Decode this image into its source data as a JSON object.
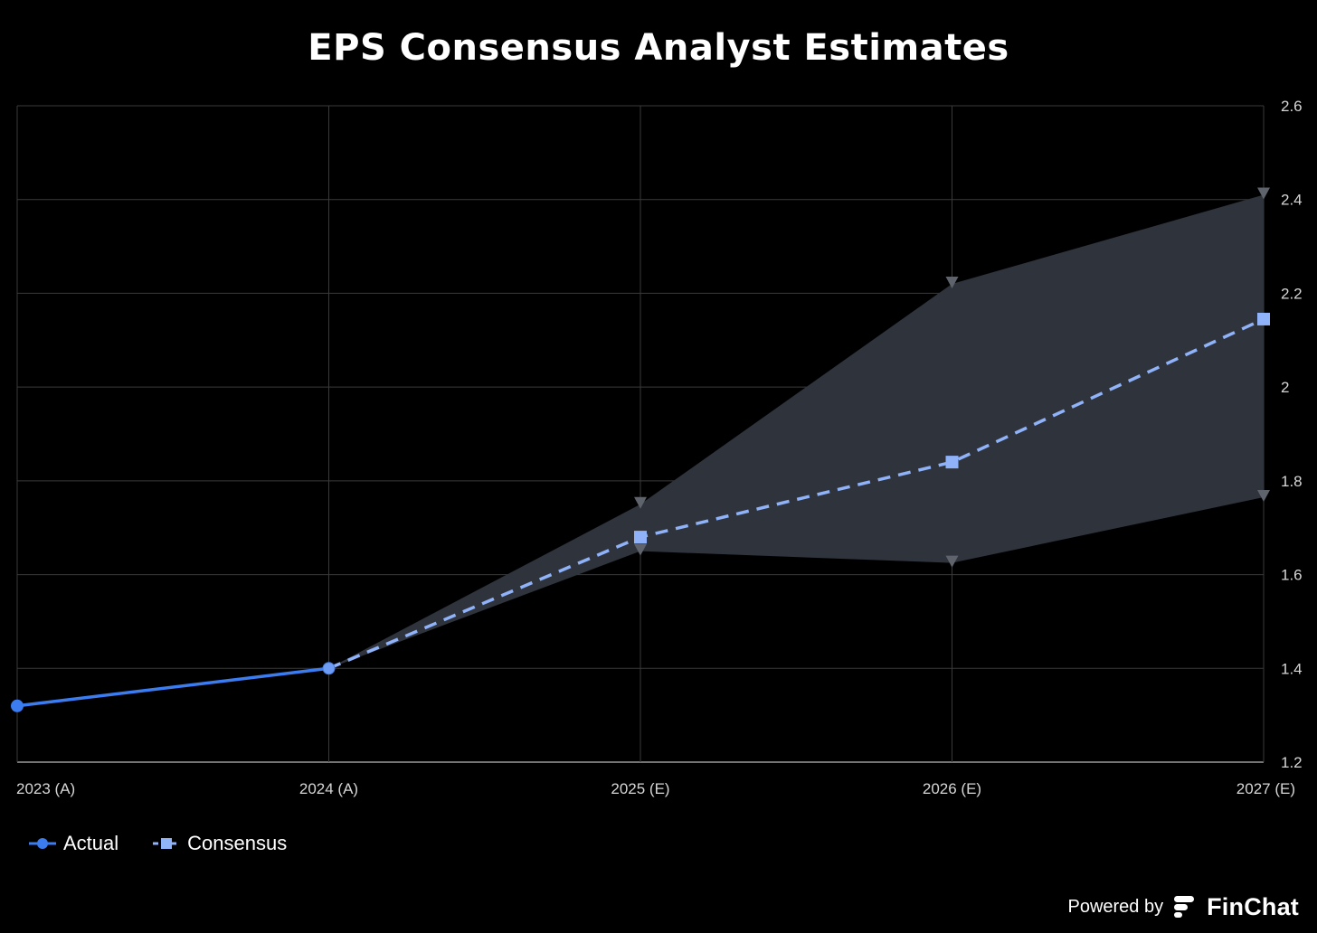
{
  "chart_data": {
    "type": "line",
    "title": "EPS Consensus Analyst Estimates",
    "categories": [
      "2023 (A)",
      "2024 (A)",
      "2025 (E)",
      "2026 (E)",
      "2027 (E)"
    ],
    "series": [
      {
        "name": "Actual",
        "values": [
          1.32,
          1.4,
          null,
          null,
          null
        ],
        "color": "#3b7cf0",
        "style": "solid",
        "marker": "circle"
      },
      {
        "name": "Consensus",
        "values": [
          null,
          1.4,
          1.68,
          1.84,
          2.145
        ],
        "color": "#8fb2f8",
        "style": "dashed",
        "marker": "square"
      }
    ],
    "range": {
      "high": [
        null,
        1.4,
        1.75,
        2.22,
        2.41
      ],
      "low": [
        null,
        1.4,
        1.65,
        1.625,
        1.765
      ],
      "fill": "#2e333c",
      "marker_color": "#5e636c"
    },
    "ylim": [
      1.2,
      2.6
    ],
    "yticks": [
      1.2,
      1.4,
      1.6,
      1.8,
      2,
      2.2,
      2.4,
      2.6
    ],
    "y_axis_side": "right",
    "grid": true,
    "legend_position": "bottom-left"
  },
  "footer": {
    "powered_by": "Powered by",
    "brand": "FinChat",
    "brand_icon": "finchat-logo-icon"
  }
}
